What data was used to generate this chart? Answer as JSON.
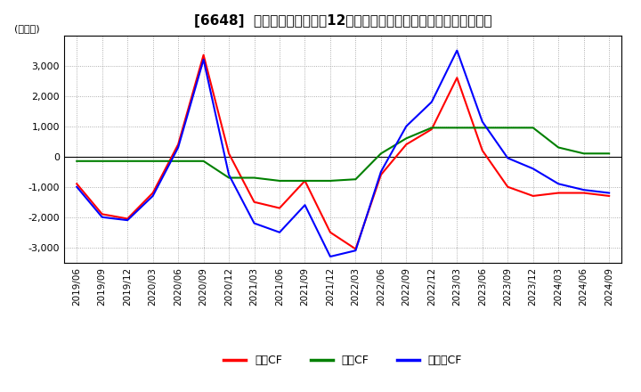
{
  "title": "[6648]  キャッシュフローの12か月移動合計の対前年同期増減額の推移",
  "ylabel": "(百万円)",
  "ylim": [
    -3500,
    4000
  ],
  "yticks": [
    -3000,
    -2000,
    -1000,
    0,
    1000,
    2000,
    3000
  ],
  "legend_labels": [
    "営業CF",
    "投資CF",
    "フリーCF"
  ],
  "colors": [
    "#ff0000",
    "#008000",
    "#0000ff"
  ],
  "dates": [
    "2019/06",
    "2019/09",
    "2019/12",
    "2020/03",
    "2020/06",
    "2020/09",
    "2020/12",
    "2021/03",
    "2021/06",
    "2021/09",
    "2021/12",
    "2022/03",
    "2022/06",
    "2022/09",
    "2022/12",
    "2023/03",
    "2023/06",
    "2023/09",
    "2023/12",
    "2024/03",
    "2024/06",
    "2024/09"
  ],
  "series": [
    [
      -900,
      -1900,
      -2050,
      -1200,
      400,
      3350,
      100,
      -1500,
      -1700,
      -800,
      -2500,
      -3050,
      -600,
      400,
      900,
      2600,
      200,
      -1000,
      -1300,
      -1200,
      -1200,
      -1300
    ],
    [
      -150,
      -150,
      -150,
      -150,
      -150,
      -150,
      -700,
      -700,
      -800,
      -800,
      -800,
      -750,
      100,
      600,
      950,
      950,
      950,
      950,
      950,
      300,
      100,
      100
    ],
    [
      -1000,
      -2000,
      -2100,
      -1300,
      300,
      3200,
      -600,
      -2200,
      -2500,
      -1600,
      -3300,
      -3100,
      -500,
      1000,
      1800,
      3500,
      1150,
      -50,
      -400,
      -900,
      -1100,
      -1200
    ]
  ],
  "background_color": "#ffffff",
  "grid_color": "#999999",
  "title_fontsize": 11,
  "tick_fontsize": 7.5,
  "ylabel_fontsize": 8,
  "legend_fontsize": 9
}
